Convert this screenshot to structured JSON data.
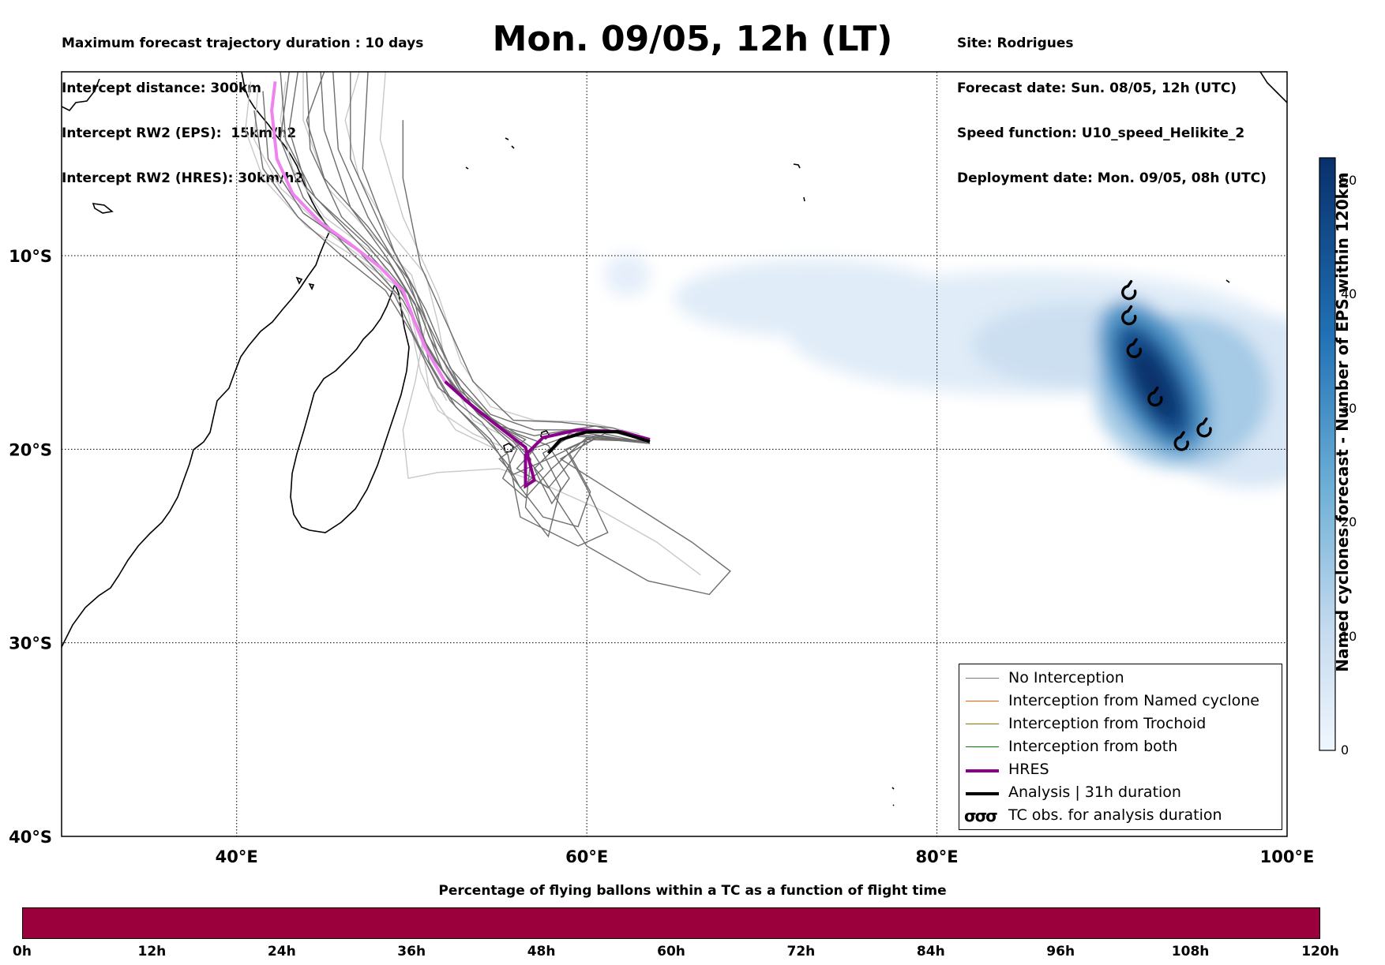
{
  "header_left": [
    "Maximum forecast trajectory duration : 10 days",
    "Intercept distance: 300km",
    "Intercept RW2 (EPS):  15km/h2",
    "Intercept RW2 (HRES): 30km/h2"
  ],
  "title": "Mon. 09/05, 12h (LT)",
  "header_right": [
    "Site: Rodrigues",
    "Forecast date: Sun. 08/05, 12h (UTC)",
    "Speed function: U10_speed_Helikite_2",
    "Deployment date: Mon. 09/05, 08h (UTC)"
  ],
  "legend": [
    {
      "label": "No Interception",
      "color": "#777777",
      "style": "thin"
    },
    {
      "label": "Interception from Named cyclone",
      "color": "#ff5a00",
      "style": "thin"
    },
    {
      "label": "Interception from Trochoid",
      "color": "#8a7a00",
      "style": "thin"
    },
    {
      "label": "Interception from both",
      "color": "#008000",
      "style": "thin"
    },
    {
      "label": "HRES",
      "color": "#8b008b",
      "style": "thick"
    },
    {
      "label": "Analysis | 31h duration",
      "color": "#000000",
      "style": "thick"
    },
    {
      "label": "TC obs. for analysis duration",
      "color": "#000000",
      "style": "symbol",
      "symbol": "σσσ"
    }
  ],
  "colorbar": {
    "label": "Named cyclones forecast - Number of EPS within 120km",
    "ticks": [
      "0",
      "10",
      "20",
      "30",
      "40",
      "50"
    ],
    "min": 0,
    "max": 52,
    "color_low": "#e6f0fa",
    "color_high": "#08306b"
  },
  "bottom_bar": {
    "title": "Percentage of flying ballons within a TC as a function of flight time",
    "ticks": [
      "0h",
      "12h",
      "24h",
      "36h",
      "48h",
      "60h",
      "72h",
      "84h",
      "96h",
      "108h",
      "120h"
    ],
    "color": "#9b003c"
  },
  "chart_data": {
    "type": "map",
    "x_ticks": [
      {
        "value": 40,
        "label": "40°E"
      },
      {
        "value": 60,
        "label": "60°E"
      },
      {
        "value": 80,
        "label": "80°E"
      },
      {
        "value": 100,
        "label": "100°E"
      }
    ],
    "y_ticks": [
      {
        "value": -10,
        "label": "10°S"
      },
      {
        "value": -20,
        "label": "20°S"
      },
      {
        "value": -30,
        "label": "30°S"
      },
      {
        "value": -40,
        "label": "40°S"
      }
    ],
    "xlim": [
      30,
      100
    ],
    "ylim": [
      -40,
      -0.5
    ],
    "grid": true,
    "hres_track": [
      [
        42.2,
        -1.0
      ],
      [
        42.0,
        -2.5
      ],
      [
        42.3,
        -5
      ],
      [
        43.2,
        -6.8
      ],
      [
        44.8,
        -8.3
      ],
      [
        46.5,
        -9.4
      ],
      [
        48.2,
        -10.6
      ],
      [
        49.5,
        -11.8
      ],
      [
        50.2,
        -13.5
      ],
      [
        50.8,
        -14.8
      ],
      [
        51.9,
        -16.5
      ],
      [
        53.5,
        -17.8
      ],
      [
        55.2,
        -19.0
      ],
      [
        56.5,
        -19.9
      ],
      [
        57.0,
        -21.6
      ],
      [
        56.5,
        -21.9
      ],
      [
        56.5,
        -20.3
      ],
      [
        57.5,
        -19.4
      ],
      [
        59.5,
        -19.0
      ],
      [
        62.0,
        -19.1
      ],
      [
        63.6,
        -19.5
      ]
    ],
    "analysis_track": [
      [
        57.8,
        -20.2
      ],
      [
        58.5,
        -19.5
      ],
      [
        60.0,
        -19.1
      ],
      [
        61.8,
        -19.1
      ],
      [
        63.6,
        -19.6
      ]
    ],
    "tc_observations": [
      [
        91.0,
        -11.9
      ],
      [
        91.0,
        -13.2
      ],
      [
        91.3,
        -14.9
      ],
      [
        92.5,
        -17.4
      ],
      [
        94.0,
        -19.7
      ],
      [
        95.3,
        -19.0
      ]
    ],
    "eps_density": [
      {
        "lon": 85.5,
        "lat": -14.0,
        "rx": 14.0,
        "ry": 3.2,
        "value": 4
      },
      {
        "lon": 73.0,
        "lat": -12.2,
        "rx": 8.0,
        "ry": 2.0,
        "value": 4
      },
      {
        "lon": 98.0,
        "lat": -17.5,
        "rx": 6.0,
        "ry": 4.5,
        "value": 6
      },
      {
        "lon": 88.0,
        "lat": -14.6,
        "rx": 6.0,
        "ry": 2.2,
        "value": 9
      },
      {
        "lon": 94.0,
        "lat": -17.0,
        "rx": 5.0,
        "ry": 4.0,
        "value": 15
      },
      {
        "lon": 92.4,
        "lat": -16.3,
        "rx": 2.6,
        "ry": 4.4,
        "value": 28
      },
      {
        "lon": 92.4,
        "lat": -16.5,
        "rx": 1.6,
        "ry": 3.4,
        "value": 44
      },
      {
        "lon": 92.4,
        "lat": -16.6,
        "rx": 0.9,
        "ry": 2.2,
        "value": 52
      },
      {
        "lon": 62.3,
        "lat": -11.0,
        "rx": 1.3,
        "ry": 1.1,
        "value": 3
      }
    ],
    "eps_tracks_no_interception": [
      [
        [
          42.5,
          -0.5
        ],
        [
          42.8,
          -4
        ],
        [
          44.5,
          -7
        ],
        [
          47.5,
          -9.5
        ],
        [
          49.8,
          -12
        ],
        [
          51.0,
          -15
        ],
        [
          53.0,
          -17.5
        ],
        [
          55.5,
          -19.2
        ],
        [
          56.8,
          -20.5
        ],
        [
          56.5,
          -23
        ],
        [
          57.8,
          -24.5
        ],
        [
          58.5,
          -22
        ],
        [
          57.5,
          -20.2
        ],
        [
          59.5,
          -19.1
        ],
        [
          63.6,
          -19.7
        ]
      ],
      [
        [
          44.0,
          -0.5
        ],
        [
          44.2,
          -4.5
        ],
        [
          46.0,
          -8
        ],
        [
          48.8,
          -10.5
        ],
        [
          50.5,
          -13
        ],
        [
          51.8,
          -16
        ],
        [
          53.8,
          -18.2
        ],
        [
          55.8,
          -19.6
        ],
        [
          57.5,
          -21.5
        ],
        [
          60.0,
          -25.0
        ],
        [
          63.5,
          -26.8
        ],
        [
          67.0,
          -27.5
        ],
        [
          68.2,
          -26.3
        ],
        [
          66.0,
          -24.8
        ],
        [
          62.0,
          -22.5
        ],
        [
          58.5,
          -20.5
        ],
        [
          60.5,
          -19.4
        ],
        [
          63.6,
          -19.7
        ]
      ],
      [
        [
          43.5,
          -0.5
        ],
        [
          43.0,
          -3.5
        ],
        [
          44.0,
          -6.5
        ],
        [
          46.8,
          -9.2
        ],
        [
          49.2,
          -11.5
        ],
        [
          50.8,
          -14.5
        ],
        [
          52.5,
          -17.0
        ],
        [
          54.8,
          -19.0
        ],
        [
          56.0,
          -20.0
        ],
        [
          55.2,
          -21.5
        ],
        [
          56.5,
          -22.5
        ],
        [
          58.0,
          -21.0
        ],
        [
          60.0,
          -19.4
        ],
        [
          63.6,
          -19.7
        ]
      ],
      [
        [
          45.5,
          -0.5
        ],
        [
          45.8,
          -4.5
        ],
        [
          47.5,
          -8.0
        ],
        [
          49.5,
          -11.0
        ],
        [
          51.2,
          -14.0
        ],
        [
          52.8,
          -16.8
        ],
        [
          55.0,
          -18.8
        ],
        [
          57.0,
          -19.3
        ],
        [
          60.5,
          -18.8
        ],
        [
          63.6,
          -19.6
        ]
      ],
      [
        [
          41.0,
          -2.5
        ],
        [
          41.5,
          -5.5
        ],
        [
          43.5,
          -8.0
        ],
        [
          46.0,
          -10.0
        ],
        [
          48.5,
          -11.8
        ],
        [
          50.0,
          -14.0
        ],
        [
          51.5,
          -16.8
        ],
        [
          54.0,
          -18.6
        ],
        [
          55.5,
          -20.3
        ],
        [
          56.2,
          -23.5
        ],
        [
          59.5,
          -25.0
        ],
        [
          61.2,
          -24.3
        ],
        [
          60.0,
          -22.0
        ],
        [
          58.8,
          -20.0
        ],
        [
          60.5,
          -19.3
        ],
        [
          63.6,
          -19.7
        ]
      ],
      [
        [
          46.5,
          -0.5
        ],
        [
          46.5,
          -5.0
        ],
        [
          48.5,
          -9.0
        ],
        [
          50.3,
          -12.0
        ],
        [
          51.5,
          -15.0
        ],
        [
          53.5,
          -17.8
        ],
        [
          56.0,
          -19.2
        ],
        [
          57.8,
          -19.8
        ],
        [
          59.0,
          -21.5
        ],
        [
          58.0,
          -22.8
        ],
        [
          57.0,
          -21.0
        ],
        [
          59.0,
          -19.2
        ],
        [
          63.6,
          -19.6
        ]
      ],
      [
        [
          44.8,
          -0.5
        ],
        [
          45.0,
          -3.5
        ],
        [
          46.5,
          -7.5
        ],
        [
          48.5,
          -10.0
        ],
        [
          50.2,
          -12.5
        ],
        [
          51.0,
          -15.5
        ],
        [
          52.5,
          -17.8
        ],
        [
          54.5,
          -19.5
        ],
        [
          55.8,
          -21.5
        ],
        [
          57.5,
          -23.5
        ],
        [
          59.5,
          -24.0
        ],
        [
          60.2,
          -22.2
        ],
        [
          59.0,
          -20.2
        ],
        [
          61.0,
          -19.2
        ],
        [
          63.6,
          -19.7
        ]
      ],
      [
        [
          43.0,
          -0.5
        ],
        [
          42.5,
          -4.0
        ],
        [
          43.8,
          -7.0
        ],
        [
          46.5,
          -9.8
        ],
        [
          49.0,
          -12.0
        ],
        [
          50.5,
          -14.8
        ],
        [
          52.2,
          -17.5
        ],
        [
          54.2,
          -19.4
        ],
        [
          55.5,
          -20.8
        ],
        [
          56.2,
          -22.0
        ],
        [
          57.5,
          -21.0
        ],
        [
          56.8,
          -20.0
        ],
        [
          59.0,
          -19.3
        ],
        [
          63.6,
          -19.6
        ]
      ],
      [
        [
          47.5,
          -0.5
        ],
        [
          47.2,
          -5.5
        ],
        [
          49.0,
          -9.8
        ],
        [
          50.8,
          -12.8
        ],
        [
          52.2,
          -15.8
        ],
        [
          54.5,
          -18.2
        ],
        [
          57.0,
          -19.0
        ],
        [
          61.0,
          -19.0
        ],
        [
          63.6,
          -19.6
        ]
      ],
      [
        [
          41.5,
          -1.5
        ],
        [
          41.8,
          -5.0
        ],
        [
          43.8,
          -7.8
        ],
        [
          47.0,
          -9.8
        ],
        [
          49.5,
          -12.3
        ],
        [
          51.2,
          -15.2
        ],
        [
          52.8,
          -17.2
        ],
        [
          55.0,
          -18.8
        ],
        [
          56.5,
          -19.5
        ],
        [
          55.0,
          -20.5
        ],
        [
          55.8,
          -21.3
        ],
        [
          57.8,
          -20.5
        ],
        [
          60.5,
          -19.3
        ],
        [
          63.6,
          -19.7
        ]
      ],
      [
        [
          49.5,
          -3.0
        ],
        [
          49.5,
          -6.0
        ],
        [
          50.5,
          -10.5
        ],
        [
          52.0,
          -13.5
        ],
        [
          53.5,
          -16.5
        ],
        [
          55.8,
          -18.5
        ],
        [
          58.5,
          -18.6
        ],
        [
          61.5,
          -18.9
        ],
        [
          63.6,
          -19.6
        ]
      ],
      [
        [
          45.0,
          -0.5
        ],
        [
          44.0,
          -3.0
        ],
        [
          45.0,
          -6.0
        ],
        [
          47.5,
          -8.5
        ],
        [
          49.8,
          -11.2
        ],
        [
          51.0,
          -14.2
        ],
        [
          52.8,
          -17.0
        ],
        [
          55.2,
          -18.9
        ],
        [
          57.0,
          -20.0
        ],
        [
          56.0,
          -21.0
        ],
        [
          57.8,
          -22.0
        ],
        [
          59.2,
          -20.5
        ],
        [
          60.0,
          -19.5
        ],
        [
          63.6,
          -19.6
        ]
      ]
    ],
    "eps_tracks_light": [
      [
        [
          41.2,
          -1.5
        ],
        [
          41.0,
          -4.0
        ],
        [
          42.5,
          -6.5
        ],
        [
          45.5,
          -9.0
        ],
        [
          48.2,
          -10.8
        ],
        [
          49.8,
          -13.0
        ],
        [
          50.5,
          -16.0
        ],
        [
          51.5,
          -18.0
        ],
        [
          53.5,
          -19.2
        ],
        [
          55.0,
          -19.8
        ]
      ],
      [
        [
          48.5,
          -0.5
        ],
        [
          48.2,
          -4.0
        ],
        [
          49.5,
          -8.0
        ],
        [
          51.5,
          -12.0
        ],
        [
          52.8,
          -15.5
        ],
        [
          54.5,
          -17.8
        ],
        [
          57.0,
          -18.5
        ],
        [
          60.0,
          -18.6
        ],
        [
          63.0,
          -19.2
        ]
      ],
      [
        [
          43.8,
          -0.5
        ],
        [
          43.8,
          -3.0
        ],
        [
          45.2,
          -6.5
        ],
        [
          47.8,
          -9.0
        ],
        [
          50.0,
          -11.0
        ],
        [
          50.8,
          -13.5
        ],
        [
          50.2,
          -16.5
        ],
        [
          49.5,
          -19.0
        ],
        [
          49.8,
          -21.5
        ],
        [
          51.5,
          -21.2
        ],
        [
          55.0,
          -21.0
        ],
        [
          57.5,
          -21.8
        ],
        [
          60.5,
          -23.0
        ],
        [
          64.0,
          -24.8
        ],
        [
          66.5,
          -26.5
        ]
      ],
      [
        [
          47.0,
          -0.5
        ],
        [
          46.2,
          -3.0
        ],
        [
          47.0,
          -6.0
        ],
        [
          48.8,
          -8.8
        ],
        [
          50.8,
          -11.0
        ],
        [
          51.5,
          -13.5
        ],
        [
          52.0,
          -16.0
        ],
        [
          53.5,
          -18.5
        ],
        [
          55.0,
          -19.2
        ]
      ],
      [
        [
          40.8,
          -1.0
        ],
        [
          40.5,
          -3.5
        ],
        [
          41.5,
          -6.0
        ],
        [
          44.0,
          -8.5
        ],
        [
          47.0,
          -10.2
        ],
        [
          49.5,
          -11.8
        ],
        [
          50.5,
          -14.0
        ],
        [
          51.0,
          -17.0
        ],
        [
          52.5,
          -19.0
        ],
        [
          54.8,
          -20.0
        ]
      ],
      [
        [
          42.8,
          -1.0
        ],
        [
          42.5,
          -3.0
        ],
        [
          43.2,
          -5.5
        ],
        [
          45.0,
          -8.0
        ],
        [
          48.0,
          -10.0
        ],
        [
          49.8,
          -12.5
        ],
        [
          50.5,
          -15.0
        ],
        [
          52.0,
          -17.5
        ]
      ]
    ]
  }
}
